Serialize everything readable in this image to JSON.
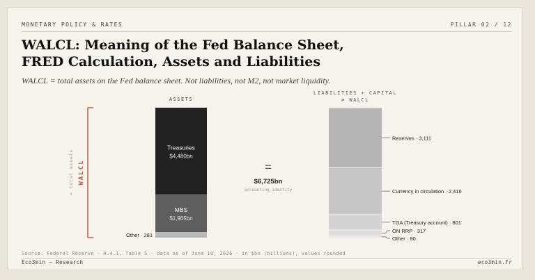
{
  "header": {
    "kicker": "MONETARY POLICY & RATES",
    "pillar": "PILLAR 02 / 12"
  },
  "title_line1": "WALCL: Meaning of the Fed Balance Sheet,",
  "title_line2": "FRED Calculation, Assets and Liabilities",
  "subtitle": "WALCL = total assets on the Fed balance sheet. Not liabilities, not M2, not market liquidity.",
  "diagram": {
    "bracket_small": "= total assets",
    "bracket_big": "WALCL",
    "assets_header": "ASSETS",
    "liab_header_1": "LIABILITIES + CAPITAL",
    "liab_header_2": "≠ WALCL",
    "equals_sign": "=",
    "total_value": "$6,725bn",
    "total_caption": "accounting identity",
    "colors": {
      "treasuries": "#222222",
      "mbs": "#5e5e5e",
      "other_assets": "#b8b8b8",
      "reserves": "#b5b5b5",
      "currency": "#c6c6c6",
      "tga": "#d3d3d3",
      "onrrp": "#dcdcdc",
      "other_liab": "#e5e5e5",
      "bracket": "#c0563e"
    },
    "assets": [
      {
        "key": "treasuries",
        "name": "Treasuries",
        "value": 4480,
        "value_label": "$4,480bn",
        "inside": true
      },
      {
        "key": "mbs",
        "name": "MBS",
        "value": 1965,
        "value_label": "$1,965bn",
        "inside": true
      },
      {
        "key": "other_assets",
        "name": "Other · 281",
        "value": 281,
        "value_label": "",
        "inside": false
      }
    ],
    "liabilities": [
      {
        "key": "reserves",
        "label": "Reserves · 3,111",
        "value": 3111
      },
      {
        "key": "currency",
        "label": "Currency in circulation · 2,416",
        "value": 2416
      },
      {
        "key": "tga",
        "label": "TGA (Treasury account) · 801",
        "value": 801
      },
      {
        "key": "onrrp",
        "label": "ON RRP · 317",
        "value": 317
      },
      {
        "key": "other_liab",
        "label": "Other · 80",
        "value": 80
      }
    ]
  },
  "footer": {
    "source": "Source: Federal Reserve - H.4.1, Table 5 - data as of June 10, 2026 - in $bn (billions), values rounded",
    "brand": "Eco3min — Research",
    "site": "eco3min.fr"
  }
}
